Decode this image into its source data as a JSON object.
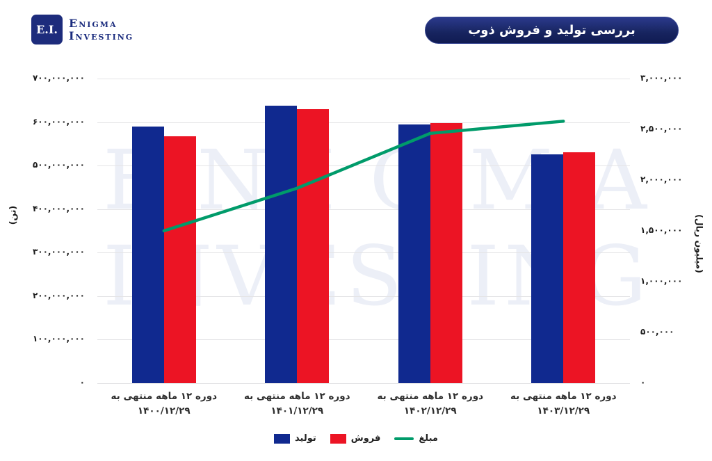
{
  "header": {
    "logo": {
      "monogram": "E.I.",
      "name_line1": "Enigma",
      "name_line2": "Investing"
    },
    "title": "بررسی تولید و فروش ذوب"
  },
  "watermark": {
    "line1": "ENIGMA",
    "line2": "INVESTING"
  },
  "colors": {
    "production_blue": "#10298f",
    "sales_red": "#ec1424",
    "amount_green": "#009b6a",
    "navy_brand": "#1b2c7e",
    "gridline": "#e4e4e6",
    "watermark": "#eceff7"
  },
  "chart_data": {
    "type": "bar",
    "title": "بررسی تولید و فروش ذوب",
    "grid": true,
    "legend_position": "bottom",
    "categories": [
      {
        "line1": "دوره ۱۲ ماهه منتهی به",
        "line2": "۱۴۰۰/۱۲/۲۹"
      },
      {
        "line1": "دوره ۱۲ ماهه منتهی به",
        "line2": "۱۴۰۱/۱۲/۲۹"
      },
      {
        "line1": "دوره ۱۲ ماهه منتهی به",
        "line2": "۱۴۰۲/۱۲/۲۹"
      },
      {
        "line1": "دوره ۱۲ ماهه منتهی به",
        "line2": "۱۴۰۳/۱۲/۲۹"
      }
    ],
    "series": [
      {
        "name": "تولید",
        "type": "bar",
        "axis": "left",
        "color": "#10298f",
        "values": [
          590000000,
          637000000,
          594000000,
          526000000
        ]
      },
      {
        "name": "فروش",
        "type": "bar",
        "axis": "left",
        "color": "#ec1424",
        "values": [
          568000000,
          629000000,
          597000000,
          530000000
        ]
      },
      {
        "name": "مبلغ",
        "type": "line",
        "axis": "right",
        "color": "#009b6a",
        "values": [
          1500000,
          1920000,
          2460000,
          2580000
        ]
      }
    ],
    "left_axis": {
      "title": "(تن)",
      "min": 0,
      "max": 700000000,
      "step": 100000000,
      "tick_labels": [
        "۷۰۰,۰۰۰,۰۰۰",
        "۶۰۰,۰۰۰,۰۰۰",
        "۵۰۰,۰۰۰,۰۰۰",
        "۴۰۰,۰۰۰,۰۰۰",
        "۳۰۰,۰۰۰,۰۰۰",
        "۲۰۰,۰۰۰,۰۰۰",
        "۱۰۰,۰۰۰,۰۰۰",
        "۰"
      ]
    },
    "right_axis": {
      "title": "(میلیون ریال)",
      "min": 0,
      "max": 3000000,
      "step": 500000,
      "tick_labels": [
        "۳,۰۰۰,۰۰۰",
        "۲,۵۰۰,۰۰۰",
        "۲,۰۰۰,۰۰۰",
        "۱,۵۰۰,۰۰۰",
        "۱,۰۰۰,۰۰۰",
        "۵۰۰,۰۰۰",
        "۰"
      ]
    }
  }
}
